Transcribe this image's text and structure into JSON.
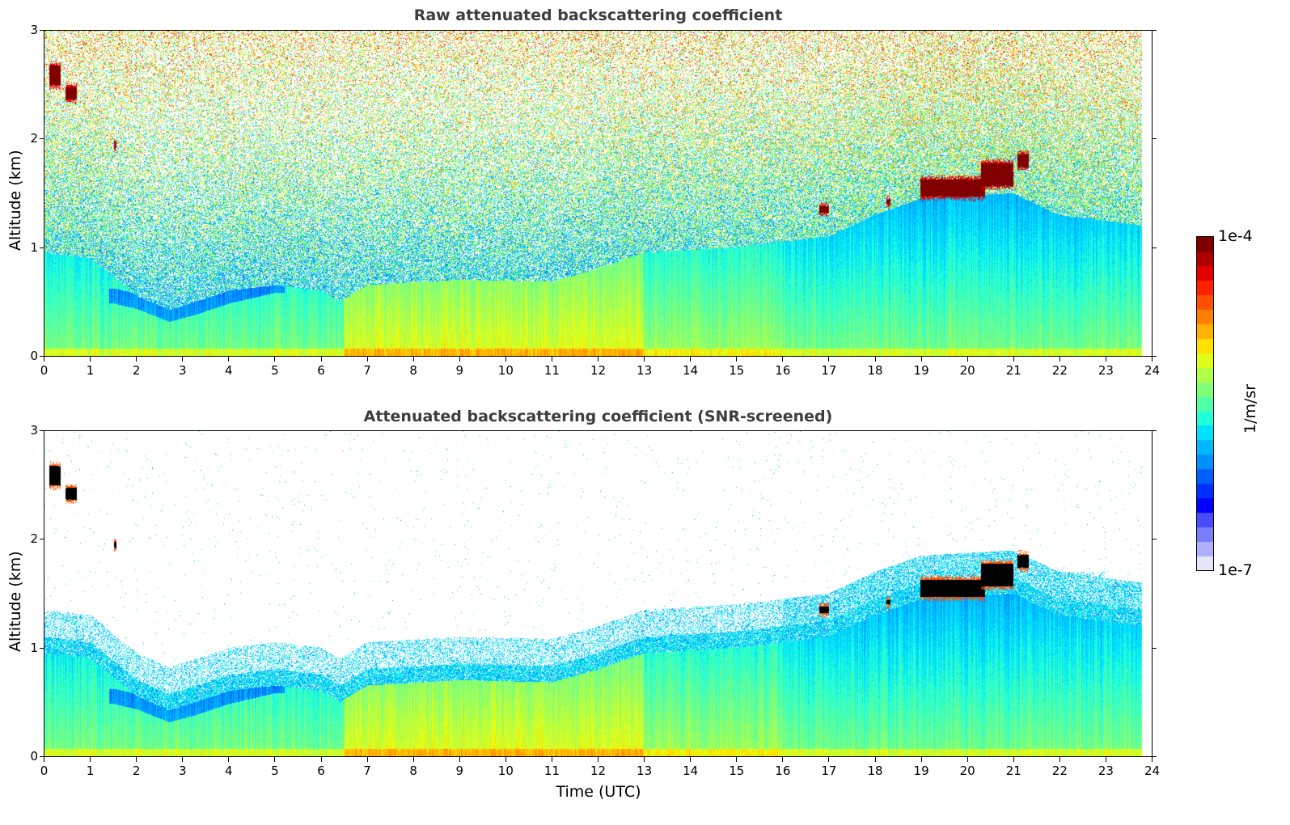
{
  "chart_data": [
    {
      "type": "heatmap",
      "title": "Raw attenuated backscattering coefficient",
      "xlabel": "",
      "ylabel": "Altitude (km)",
      "xlim": [
        0,
        24
      ],
      "ylim": [
        0,
        3
      ],
      "x_ticks": [
        "0",
        "1",
        "2",
        "3",
        "4",
        "5",
        "6",
        "7",
        "8",
        "9",
        "10",
        "11",
        "12",
        "13",
        "14",
        "15",
        "16",
        "17",
        "18",
        "19",
        "20",
        "21",
        "22",
        "23",
        "24"
      ],
      "y_ticks": [
        "0",
        "1",
        "2",
        "3"
      ],
      "data_end_hour": 23.8,
      "screened": false,
      "grid": false
    },
    {
      "type": "heatmap",
      "title": "Attenuated backscattering coefficient (SNR-screened)",
      "xlabel": "Time (UTC)",
      "ylabel": "Altitude (km)",
      "xlim": [
        0,
        24
      ],
      "ylim": [
        0,
        3
      ],
      "x_ticks": [
        "0",
        "1",
        "2",
        "3",
        "4",
        "5",
        "6",
        "7",
        "8",
        "9",
        "10",
        "11",
        "12",
        "13",
        "14",
        "15",
        "16",
        "17",
        "18",
        "19",
        "20",
        "21",
        "22",
        "23",
        "24"
      ],
      "y_ticks": [
        "0",
        "1",
        "2",
        "3"
      ],
      "data_end_hour": 23.8,
      "screened": true,
      "grid": false
    }
  ],
  "colorbar": {
    "min_label": "1e-7",
    "max_label": "1e-4",
    "unit": "1/m/sr",
    "log10_range": [
      -7,
      -4
    ],
    "colormap": "jet (with light-lavender low end)",
    "colors": [
      "#e6e6fa",
      "#b0b0ff",
      "#7c7cff",
      "#4a4aff",
      "#0000ff",
      "#0030ff",
      "#0060ff",
      "#0090ff",
      "#00b8ff",
      "#00e0ff",
      "#20ffd8",
      "#50ffa8",
      "#80ff78",
      "#b0ff48",
      "#e0ff18",
      "#ffe000",
      "#ffb000",
      "#ff8000",
      "#ff5000",
      "#ff2000",
      "#e00000",
      "#b00000",
      "#800000"
    ]
  },
  "features": {
    "boundary_layer_top_km": [
      [
        0,
        0.95
      ],
      [
        1,
        0.9
      ],
      [
        2,
        0.55
      ],
      [
        2.7,
        0.42
      ],
      [
        3.3,
        0.5
      ],
      [
        4,
        0.6
      ],
      [
        5,
        0.65
      ],
      [
        6,
        0.6
      ],
      [
        6.4,
        0.5
      ],
      [
        7,
        0.65
      ],
      [
        9,
        0.7
      ],
      [
        11,
        0.68
      ],
      [
        12,
        0.8
      ],
      [
        13,
        0.95
      ],
      [
        15,
        1.0
      ],
      [
        17,
        1.1
      ],
      [
        18,
        1.3
      ],
      [
        19,
        1.45
      ],
      [
        21,
        1.5
      ],
      [
        22,
        1.3
      ],
      [
        23.8,
        1.2
      ]
    ],
    "dark_layer_km": [
      [
        1.5,
        0.55
      ],
      [
        2,
        0.5
      ],
      [
        2.7,
        0.38
      ],
      [
        3.3,
        0.45
      ],
      [
        4,
        0.55
      ],
      [
        5,
        0.65
      ]
    ],
    "clouds": [
      {
        "t0": 0.1,
        "t1": 0.35,
        "z0": 2.48,
        "z1": 2.7,
        "log10": -4.0
      },
      {
        "t0": 0.45,
        "t1": 0.7,
        "z0": 2.35,
        "z1": 2.5,
        "log10": -4.1
      },
      {
        "t0": 1.5,
        "t1": 1.55,
        "z0": 1.9,
        "z1": 2.0,
        "log10": -4.2
      },
      {
        "t0": 16.8,
        "t1": 17.0,
        "z0": 1.3,
        "z1": 1.4,
        "log10": -4.0
      },
      {
        "t0": 18.25,
        "t1": 18.35,
        "z0": 1.38,
        "z1": 1.46,
        "log10": -4.1
      },
      {
        "t0": 19.0,
        "t1": 20.4,
        "z0": 1.45,
        "z1": 1.65,
        "log10": -4.0
      },
      {
        "t0": 20.3,
        "t1": 21.0,
        "z0": 1.55,
        "z1": 1.8,
        "log10": -4.0
      },
      {
        "t0": 21.1,
        "t1": 21.35,
        "z0": 1.72,
        "z1": 1.88,
        "log10": -4.0
      }
    ]
  }
}
